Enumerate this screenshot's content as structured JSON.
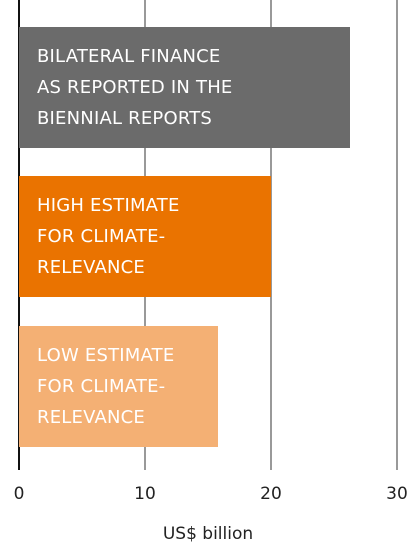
{
  "chart_data": {
    "type": "barh",
    "categories": [
      "BILATERAL FINANCE\nAS REPORTED IN THE\nBIENNIAL REPORTS",
      "HIGH ESTIMATE\nFOR CLIMATE-\nRELEVANCE",
      "LOW ESTIMATE\nFOR CLIMATE-\nRELEVANCE"
    ],
    "values": [
      26.3,
      20,
      15.8
    ],
    "colors": [
      "#6b6b6b",
      "#ea7300",
      "#f4b074"
    ],
    "xlim": [
      0,
      30
    ],
    "xticks": [
      0,
      10,
      20,
      30
    ],
    "grid": true,
    "xlabel": "US$ billion"
  }
}
